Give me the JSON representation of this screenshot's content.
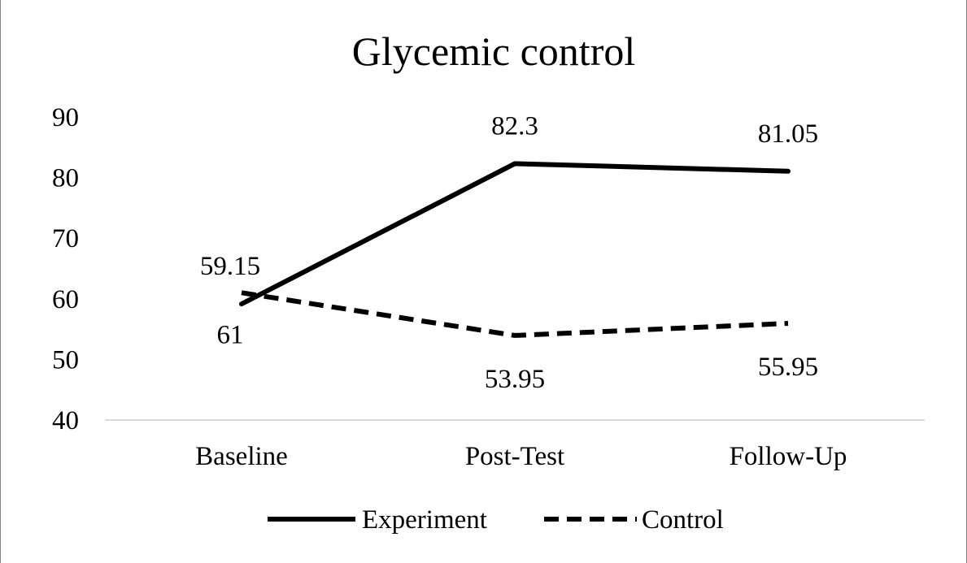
{
  "chart_data": {
    "type": "line",
    "title": "Glycemic control",
    "xlabel": "",
    "ylabel": "",
    "categories": [
      "Baseline",
      "Post-Test",
      "Follow-Up"
    ],
    "ylim": [
      40,
      90
    ],
    "yticks": [
      "40",
      "50",
      "60",
      "70",
      "80",
      "90"
    ],
    "series": [
      {
        "name": "Experiment",
        "values": [
          59.15,
          82.3,
          81.05
        ],
        "labels": [
          "59.15",
          "82.3",
          "81.05"
        ],
        "style": "solid",
        "color": "#000000"
      },
      {
        "name": "Control",
        "values": [
          61,
          53.95,
          55.95
        ],
        "labels": [
          "61",
          "53.95",
          "55.95"
        ],
        "style": "dashed",
        "color": "#000000"
      }
    ],
    "grid": false,
    "legend_position": "bottom"
  }
}
